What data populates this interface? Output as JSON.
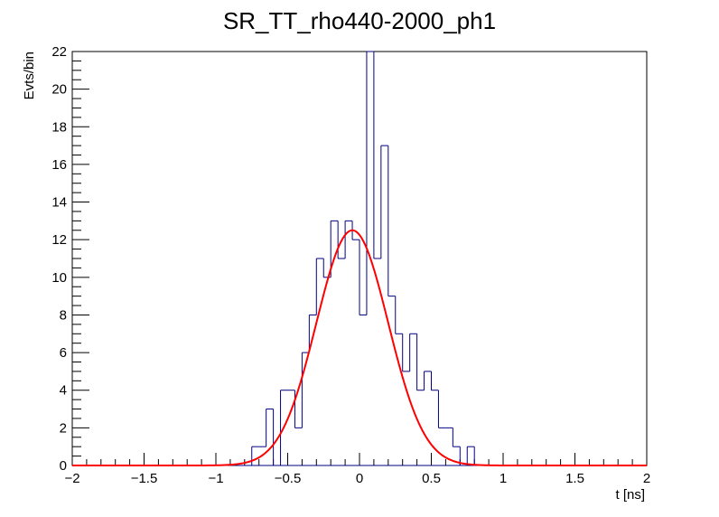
{
  "chart_data": {
    "type": "histogram",
    "title": "SR_TT_rho440-2000_ph1",
    "xlabel": "t [ns]",
    "ylabel": "Evts/bin",
    "xlim": [
      -2,
      2
    ],
    "ylim": [
      0,
      22
    ],
    "x_ticks": [
      "−2",
      "−1.5",
      "−1",
      "−0.5",
      "0",
      "0.5",
      "1",
      "1.5",
      "2"
    ],
    "y_ticks": [
      "0",
      "2",
      "4",
      "6",
      "8",
      "10",
      "12",
      "14",
      "16",
      "18",
      "20",
      "22"
    ],
    "bin_width": 0.05,
    "series": [
      {
        "kind": "histogram",
        "color": "#000080",
        "bins": [
          {
            "x": -0.75,
            "y": 1
          },
          {
            "x": -0.7,
            "y": 1
          },
          {
            "x": -0.65,
            "y": 3
          },
          {
            "x": -0.6,
            "y": 0
          },
          {
            "x": -0.55,
            "y": 4
          },
          {
            "x": -0.5,
            "y": 4
          },
          {
            "x": -0.45,
            "y": 2
          },
          {
            "x": -0.4,
            "y": 6
          },
          {
            "x": -0.35,
            "y": 8
          },
          {
            "x": -0.3,
            "y": 11
          },
          {
            "x": -0.25,
            "y": 10
          },
          {
            "x": -0.2,
            "y": 13
          },
          {
            "x": -0.15,
            "y": 11
          },
          {
            "x": -0.1,
            "y": 13
          },
          {
            "x": -0.05,
            "y": 12
          },
          {
            "x": 0.0,
            "y": 8
          },
          {
            "x": 0.05,
            "y": 22
          },
          {
            "x": 0.1,
            "y": 11
          },
          {
            "x": 0.15,
            "y": 17
          },
          {
            "x": 0.2,
            "y": 9
          },
          {
            "x": 0.25,
            "y": 7
          },
          {
            "x": 0.3,
            "y": 5
          },
          {
            "x": 0.35,
            "y": 7
          },
          {
            "x": 0.4,
            "y": 4
          },
          {
            "x": 0.45,
            "y": 5
          },
          {
            "x": 0.5,
            "y": 4
          },
          {
            "x": 0.55,
            "y": 2
          },
          {
            "x": 0.6,
            "y": 2
          },
          {
            "x": 0.65,
            "y": 1
          },
          {
            "x": 0.7,
            "y": 0
          },
          {
            "x": 0.75,
            "y": 1
          }
        ]
      },
      {
        "kind": "fit",
        "function": "gaussian",
        "color": "#ff0000",
        "amplitude": 12.5,
        "mean": -0.05,
        "sigma": 0.25
      }
    ]
  }
}
